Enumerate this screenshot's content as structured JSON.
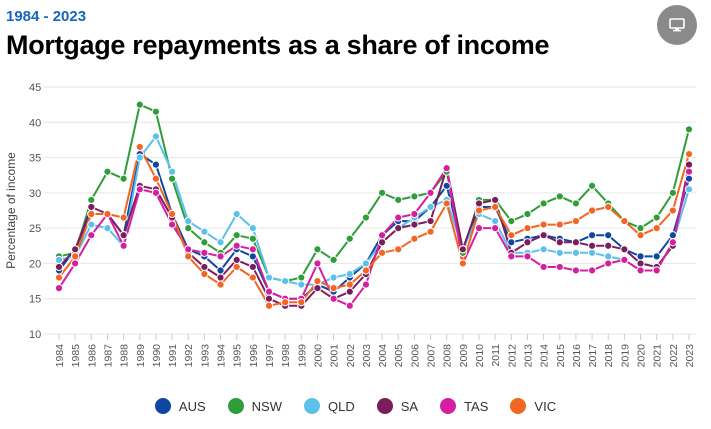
{
  "header": {
    "subtitle": "1984 - 2023",
    "title": "Mortgage repayments as a share of income",
    "screen_icon": "monitor-icon"
  },
  "chart_data": {
    "type": "line",
    "ylabel": "Percentage of income",
    "xlabel": "",
    "ylim": [
      10,
      45
    ],
    "yticks": [
      10,
      15,
      20,
      25,
      30,
      35,
      40,
      45
    ],
    "grid": "horizontal",
    "legend_position": "bottom",
    "categories": [
      "1984",
      "1985",
      "1986",
      "1987",
      "1988",
      "1989",
      "1990",
      "1991",
      "1992",
      "1993",
      "1994",
      "1995",
      "1996",
      "1997",
      "1998",
      "1999",
      "2000",
      "2001",
      "2002",
      "2003",
      "2004",
      "2005",
      "2006",
      "2007",
      "2008",
      "2009",
      "2010",
      "2011",
      "2012",
      "2013",
      "2014",
      "2015",
      "2016",
      "2017",
      "2018",
      "2019",
      "2020",
      "2021",
      "2022",
      "2023"
    ],
    "series": [
      {
        "name": "AUS",
        "color": "#0d47a1",
        "values": [
          19,
          22,
          27,
          27,
          24,
          35.5,
          34,
          27,
          22,
          21,
          19,
          22,
          21,
          16,
          15,
          15,
          17,
          16,
          18,
          20,
          24,
          26,
          26,
          28,
          31,
          22,
          28,
          28,
          23,
          23.5,
          24,
          23.5,
          23,
          24,
          24,
          22,
          21,
          21,
          24,
          32
        ]
      },
      {
        "name": "NSW",
        "color": "#2e9e3a",
        "values": [
          21,
          21.5,
          29,
          33,
          32,
          42.5,
          41.5,
          32,
          25,
          23,
          21.5,
          24,
          23.5,
          18,
          17.5,
          18,
          22,
          20.5,
          23.5,
          26.5,
          30,
          29,
          29.5,
          30,
          33,
          21.5,
          29,
          29,
          26,
          27,
          28.5,
          29.5,
          28.5,
          31,
          28.5,
          26,
          25,
          26.5,
          30,
          39
        ]
      },
      {
        "name": "QLD",
        "color": "#5bc0eb",
        "values": [
          20.5,
          21,
          25.5,
          25,
          22.5,
          35,
          38,
          33,
          26,
          24.5,
          23,
          27,
          25,
          18,
          17.5,
          17,
          17,
          18,
          18.5,
          20,
          23,
          25,
          26.5,
          28,
          29,
          22,
          27,
          26,
          21.5,
          21.5,
          22,
          21.5,
          21.5,
          21.5,
          21,
          20.5,
          19,
          19,
          23,
          30.5
        ]
      },
      {
        "name": "SA",
        "color": "#7b1d5c",
        "values": [
          19.5,
          22,
          28,
          27,
          24,
          31,
          30.5,
          26.5,
          21.5,
          19.5,
          18,
          20.5,
          19.5,
          15,
          14,
          14,
          16.5,
          15,
          16,
          18.5,
          23,
          25,
          25.5,
          26,
          33.5,
          22,
          28.5,
          29,
          21.5,
          23,
          24,
          23,
          23,
          22.5,
          22.5,
          22,
          20,
          19.5,
          22.5,
          34
        ]
      },
      {
        "name": "TAS",
        "color": "#d61fa0",
        "values": [
          16.5,
          20,
          24,
          27,
          22.5,
          30.5,
          30,
          25.5,
          22,
          21.5,
          21,
          22.5,
          22,
          16,
          15,
          15,
          20,
          15,
          14,
          17,
          24,
          26.5,
          27,
          30,
          33.5,
          20,
          25,
          25,
          21,
          21,
          19.5,
          19.5,
          19,
          19,
          20,
          20.5,
          19,
          19,
          23,
          33
        ]
      },
      {
        "name": "VIC",
        "color": "#f26522",
        "values": [
          18,
          21,
          27,
          27,
          26.5,
          36.5,
          32,
          27,
          21,
          18.5,
          17,
          19.5,
          18,
          14,
          14.5,
          14.5,
          17.5,
          16.5,
          17,
          19,
          21.5,
          22,
          23.5,
          24.5,
          28.5,
          20,
          27.5,
          28,
          24,
          25,
          25.5,
          25.5,
          26,
          27.5,
          28,
          26,
          24,
          25,
          27.5,
          35.5
        ]
      }
    ]
  }
}
